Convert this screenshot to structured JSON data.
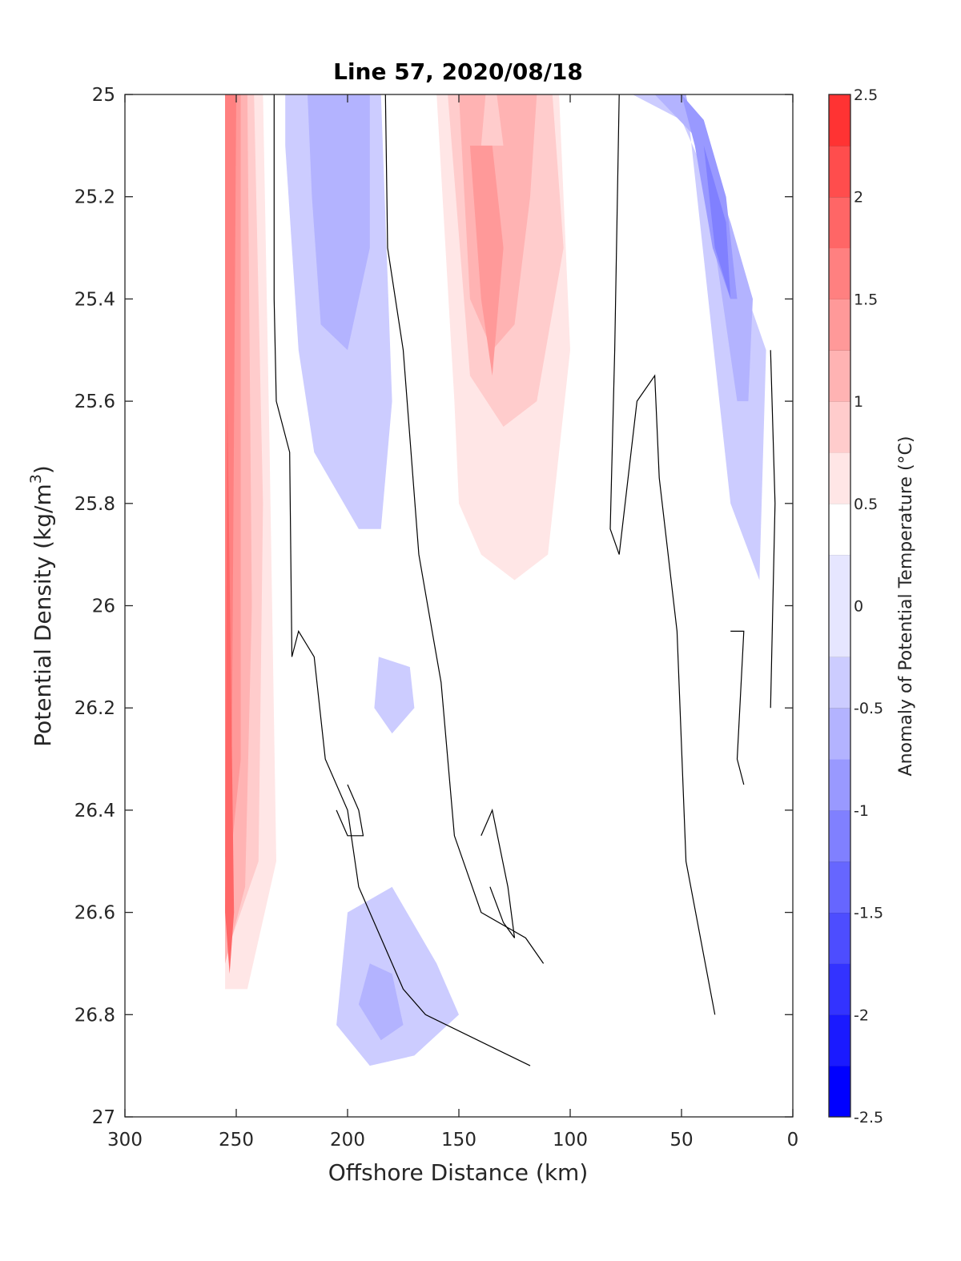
{
  "chart_data": {
    "type": "heatmap",
    "subtype": "filled-contour",
    "title": "Line 57, 2020/08/18",
    "xlabel": "Offshore Distance (km)",
    "ylabel_main": "Potential Density (kg/m",
    "ylabel_sup": "3",
    "ylabel_close": ")",
    "xlim": [
      300,
      0
    ],
    "ylim": [
      25,
      27
    ],
    "x_reversed": true,
    "y_reversed": true,
    "xticks": [
      300,
      250,
      200,
      150,
      100,
      50,
      0
    ],
    "xtick_labels": [
      "300",
      "250",
      "200",
      "150",
      "100",
      "50",
      "0"
    ],
    "yticks": [
      25,
      25.2,
      25.4,
      25.6,
      25.8,
      26,
      26.2,
      26.4,
      26.6,
      26.8,
      27
    ],
    "ytick_labels": [
      "25",
      "25.2",
      "25.4",
      "25.6",
      "25.8",
      "26",
      "26.2",
      "26.4",
      "26.6",
      "26.8",
      "27"
    ],
    "colorbar": {
      "label": "Anomaly of Potential Temperature (°C)",
      "range": [
        -2.5,
        2.5
      ],
      "ticks": [
        2.5,
        2,
        1.5,
        1,
        0.5,
        0,
        -0.5,
        -1,
        -1.5,
        -2,
        -2.5
      ],
      "tick_labels": [
        "2.5",
        "2",
        "1.5",
        "1",
        "0.5",
        "0",
        "-0.5",
        "-1",
        "-1.5",
        "-2",
        "-2.5"
      ],
      "levels": [
        -2.5,
        -2.25,
        -2,
        -1.75,
        -1.5,
        -1.25,
        -1,
        -0.75,
        -0.5,
        -0.25,
        0.25,
        0.5,
        0.75,
        1,
        1.25,
        1.5,
        1.75,
        2,
        2.25,
        2.5
      ],
      "colors": [
        "#0000ff",
        "#1a1aff",
        "#3333ff",
        "#4d4dff",
        "#6666ff",
        "#8080ff",
        "#9999ff",
        "#b3b3ff",
        "#ccccff",
        "#e6e6ff",
        "#ffffff",
        "#ffe6e6",
        "#ffcccc",
        "#ffb3b3",
        "#ff9999",
        "#ff8080",
        "#ff6666",
        "#ff4d4d",
        "#ff3333",
        "#ff1a1a"
      ]
    },
    "regions": [
      {
        "anomaly": 0.375,
        "points": [
          [
            255,
            25
          ],
          [
            235,
            25
          ],
          [
            231,
            25.6
          ],
          [
            230,
            26.1
          ],
          [
            225,
            26.9
          ],
          [
            238,
            26.8
          ],
          [
            250,
            26.75
          ],
          [
            255,
            26.75
          ]
        ]
      },
      {
        "anomaly": 0.625,
        "points": [
          [
            255,
            25
          ],
          [
            238,
            25
          ],
          [
            235,
            25.7
          ],
          [
            232,
            26.5
          ],
          [
            245,
            26.75
          ],
          [
            255,
            26.75
          ]
        ]
      },
      {
        "anomaly": 0.875,
        "points": [
          [
            255,
            25
          ],
          [
            242,
            25
          ],
          [
            238,
            25.8
          ],
          [
            240,
            26.5
          ],
          [
            252,
            26.65
          ],
          [
            255,
            26.7
          ]
        ]
      },
      {
        "anomaly": 1.125,
        "points": [
          [
            255,
            25
          ],
          [
            245,
            25
          ],
          [
            243,
            26
          ],
          [
            246,
            26.55
          ],
          [
            255,
            26.7
          ]
        ]
      },
      {
        "anomaly": 1.375,
        "points": [
          [
            255,
            25
          ],
          [
            248,
            25
          ],
          [
            248,
            26.3
          ],
          [
            255,
            26.6
          ]
        ]
      },
      {
        "anomaly": 1.625,
        "points": [
          [
            255,
            25
          ],
          [
            250,
            25
          ],
          [
            252,
            26.3
          ],
          [
            255,
            26.5
          ]
        ]
      },
      {
        "anomaly": 1.875,
        "points": [
          [
            254,
            25.6
          ],
          [
            251,
            26.6
          ],
          [
            253,
            26.72
          ],
          [
            255,
            26.6
          ]
        ]
      },
      {
        "anomaly": -0.375,
        "points": [
          [
            228,
            25
          ],
          [
            185,
            25
          ],
          [
            180,
            25.6
          ],
          [
            185,
            25.85
          ],
          [
            195,
            25.85
          ],
          [
            215,
            25.7
          ],
          [
            222,
            25.5
          ],
          [
            228,
            25.1
          ]
        ]
      },
      {
        "anomaly": -0.625,
        "points": [
          [
            218,
            25
          ],
          [
            190,
            25
          ],
          [
            190,
            25.3
          ],
          [
            200,
            25.5
          ],
          [
            212,
            25.45
          ],
          [
            216,
            25.2
          ]
        ]
      },
      {
        "anomaly": -0.375,
        "points": [
          [
            72,
            25
          ],
          [
            48,
            25
          ],
          [
            38,
            25.4
          ],
          [
            28,
            25.8
          ],
          [
            15,
            25.95
          ],
          [
            12,
            25.5
          ],
          [
            20,
            25.4
          ],
          [
            26,
            25.3
          ],
          [
            40,
            25.15
          ],
          [
            50,
            25.05
          ]
        ]
      },
      {
        "anomaly": -0.625,
        "points": [
          [
            62,
            25
          ],
          [
            48,
            25
          ],
          [
            35,
            25.3
          ],
          [
            25,
            25.6
          ],
          [
            20,
            25.6
          ],
          [
            18,
            25.4
          ],
          [
            28,
            25.25
          ],
          [
            40,
            25.1
          ]
        ]
      },
      {
        "anomaly": -0.875,
        "points": [
          [
            50,
            25
          ],
          [
            44,
            25.1
          ],
          [
            36,
            25.3
          ],
          [
            28,
            25.4
          ],
          [
            25,
            25.4
          ],
          [
            30,
            25.2
          ],
          [
            40,
            25.05
          ]
        ]
      },
      {
        "anomaly": -1.125,
        "points": [
          [
            40,
            25.1
          ],
          [
            35,
            25.3
          ],
          [
            28,
            25.4
          ],
          [
            30,
            25.25
          ]
        ]
      },
      {
        "anomaly": 0.375,
        "points": [
          [
            165,
            25
          ],
          [
            100,
            25
          ],
          [
            95,
            25.3
          ],
          [
            100,
            25.9
          ],
          [
            110,
            26.1
          ],
          [
            120,
            26.1
          ],
          [
            150,
            26.3
          ],
          [
            160,
            26.2
          ],
          [
            168,
            26.05
          ],
          [
            175,
            25.7
          ],
          [
            170,
            25.6
          ],
          [
            160,
            25.4
          ]
        ]
      },
      {
        "anomaly": 0.625,
        "points": [
          [
            160,
            25
          ],
          [
            105,
            25
          ],
          [
            100,
            25.5
          ],
          [
            110,
            25.9
          ],
          [
            125,
            25.95
          ],
          [
            140,
            25.9
          ],
          [
            150,
            25.8
          ],
          [
            152,
            25.6
          ]
        ]
      },
      {
        "anomaly": 0.875,
        "points": [
          [
            155,
            25
          ],
          [
            108,
            25
          ],
          [
            103,
            25.3
          ],
          [
            115,
            25.6
          ],
          [
            130,
            25.65
          ],
          [
            145,
            25.55
          ]
        ]
      },
      {
        "anomaly": 1.125,
        "points": [
          [
            150,
            25
          ],
          [
            138,
            25
          ],
          [
            140,
            25.1
          ],
          [
            130,
            25.1
          ],
          [
            133,
            25
          ],
          [
            115,
            25
          ],
          [
            118,
            25.2
          ],
          [
            125,
            25.45
          ],
          [
            135,
            25.5
          ],
          [
            145,
            25.4
          ]
        ]
      },
      {
        "anomaly": 1.375,
        "points": [
          [
            145,
            25.1
          ],
          [
            140,
            25.4
          ],
          [
            135,
            25.55
          ],
          [
            130,
            25.3
          ],
          [
            135,
            25.1
          ]
        ]
      },
      {
        "anomaly": 0.375,
        "points": [
          [
            172,
            25.75
          ],
          [
            165,
            25.75
          ],
          [
            158,
            25.9
          ],
          [
            160,
            26.05
          ],
          [
            168,
            26
          ],
          [
            175,
            25.85
          ]
        ]
      },
      {
        "anomaly": -0.375,
        "points": [
          [
            200,
            26.6
          ],
          [
            180,
            26.55
          ],
          [
            160,
            26.7
          ],
          [
            150,
            26.8
          ],
          [
            170,
            26.88
          ],
          [
            190,
            26.9
          ],
          [
            205,
            26.82
          ]
        ]
      },
      {
        "anomaly": -0.625,
        "points": [
          [
            190,
            26.7
          ],
          [
            180,
            26.72
          ],
          [
            175,
            26.82
          ],
          [
            185,
            26.85
          ],
          [
            195,
            26.78
          ]
        ]
      },
      {
        "anomaly": -0.375,
        "points": [
          [
            186,
            26.1
          ],
          [
            172,
            26.12
          ],
          [
            170,
            26.2
          ],
          [
            180,
            26.25
          ],
          [
            188,
            26.2
          ]
        ]
      },
      {
        "anomaly": 0.375,
        "points": [
          [
            72,
            25.7
          ],
          [
            65,
            25.75
          ],
          [
            64,
            25.9
          ],
          [
            70,
            25.95
          ],
          [
            72,
            25.85
          ]
        ]
      },
      {
        "anomaly": 0.375,
        "points": [
          [
            8,
            25.5
          ],
          [
            0,
            25.5
          ],
          [
            0,
            25.95
          ],
          [
            6,
            26.05
          ]
        ]
      }
    ],
    "contour_lines_zero": [
      [
        [
          233,
          25
        ],
        [
          233,
          25.4
        ],
        [
          232,
          25.6
        ],
        [
          226,
          25.7
        ],
        [
          225,
          26.1
        ],
        [
          222,
          26.05
        ],
        [
          215,
          26.1
        ],
        [
          210,
          26.3
        ],
        [
          200,
          26.4
        ],
        [
          195,
          26.55
        ],
        [
          185,
          26.65
        ],
        [
          175,
          26.75
        ],
        [
          165,
          26.8
        ],
        [
          118,
          26.9
        ]
      ],
      [
        [
          183,
          25
        ],
        [
          182,
          25.3
        ],
        [
          175,
          25.5
        ],
        [
          168,
          25.9
        ],
        [
          162,
          26.05
        ],
        [
          158,
          26.15
        ],
        [
          155,
          26.3
        ],
        [
          152,
          26.45
        ],
        [
          140,
          26.6
        ],
        [
          120,
          26.65
        ],
        [
          112,
          26.7
        ]
      ],
      [
        [
          200,
          26.35
        ],
        [
          195,
          26.4
        ],
        [
          193,
          26.45
        ],
        [
          200,
          26.45
        ],
        [
          205,
          26.4
        ]
      ],
      [
        [
          140,
          26.45
        ],
        [
          135,
          26.4
        ],
        [
          128,
          26.55
        ],
        [
          125,
          26.65
        ],
        [
          130,
          26.62
        ],
        [
          136,
          26.55
        ]
      ],
      [
        [
          78,
          25
        ],
        [
          80,
          25.5
        ],
        [
          82,
          25.85
        ],
        [
          78,
          25.9
        ],
        [
          70,
          25.6
        ],
        [
          62,
          25.55
        ],
        [
          60,
          25.75
        ],
        [
          52,
          26.05
        ],
        [
          48,
          26.5
        ],
        [
          35,
          26.8
        ]
      ],
      [
        [
          28,
          26.05
        ],
        [
          22,
          26.05
        ],
        [
          25,
          26.3
        ],
        [
          22,
          26.35
        ]
      ],
      [
        [
          10,
          25.5
        ],
        [
          8,
          25.8
        ],
        [
          10,
          26.2
        ]
      ]
    ]
  }
}
